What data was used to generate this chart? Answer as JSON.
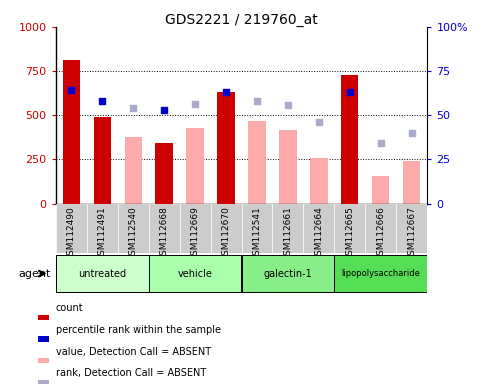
{
  "title": "GDS2221 / 219760_at",
  "samples": [
    "GSM112490",
    "GSM112491",
    "GSM112540",
    "GSM112668",
    "GSM112669",
    "GSM112670",
    "GSM112541",
    "GSM112661",
    "GSM112664",
    "GSM112665",
    "GSM112666",
    "GSM112667"
  ],
  "red_bars": [
    810,
    490,
    null,
    340,
    null,
    630,
    null,
    null,
    null,
    730,
    null,
    null
  ],
  "pink_bars": [
    null,
    null,
    375,
    null,
    430,
    null,
    465,
    415,
    255,
    null,
    155,
    240
  ],
  "blue_squares": [
    64,
    58,
    null,
    53,
    null,
    63,
    null,
    null,
    null,
    63,
    null,
    null
  ],
  "lavender_squares": [
    null,
    null,
    54,
    null,
    56.5,
    null,
    58,
    56,
    46,
    null,
    34,
    40
  ],
  "groups": [
    {
      "label": "untreated",
      "start": 0,
      "end": 3,
      "color": "#ccffcc"
    },
    {
      "label": "vehicle",
      "start": 3,
      "end": 6,
      "color": "#aaffaa"
    },
    {
      "label": "galectin-1",
      "start": 6,
      "end": 9,
      "color": "#88ee88"
    },
    {
      "label": "lipopolysaccharide",
      "start": 9,
      "end": 12,
      "color": "#55dd55"
    }
  ],
  "ylim_left": [
    0,
    1000
  ],
  "ylim_right": [
    0,
    100
  ],
  "yticks_left": [
    0,
    250,
    500,
    750,
    1000
  ],
  "yticks_right": [
    0,
    25,
    50,
    75,
    100
  ],
  "bar_width": 0.55,
  "red_color": "#cc0000",
  "pink_color": "#ffaaaa",
  "blue_color": "#0000cc",
  "lavender_color": "#aaaacc",
  "bg_color": "#ffffff",
  "plot_bg": "#ffffff",
  "xticklabel_bg": "#cccccc",
  "tick_label_fontsize": 6.5,
  "title_fontsize": 10
}
